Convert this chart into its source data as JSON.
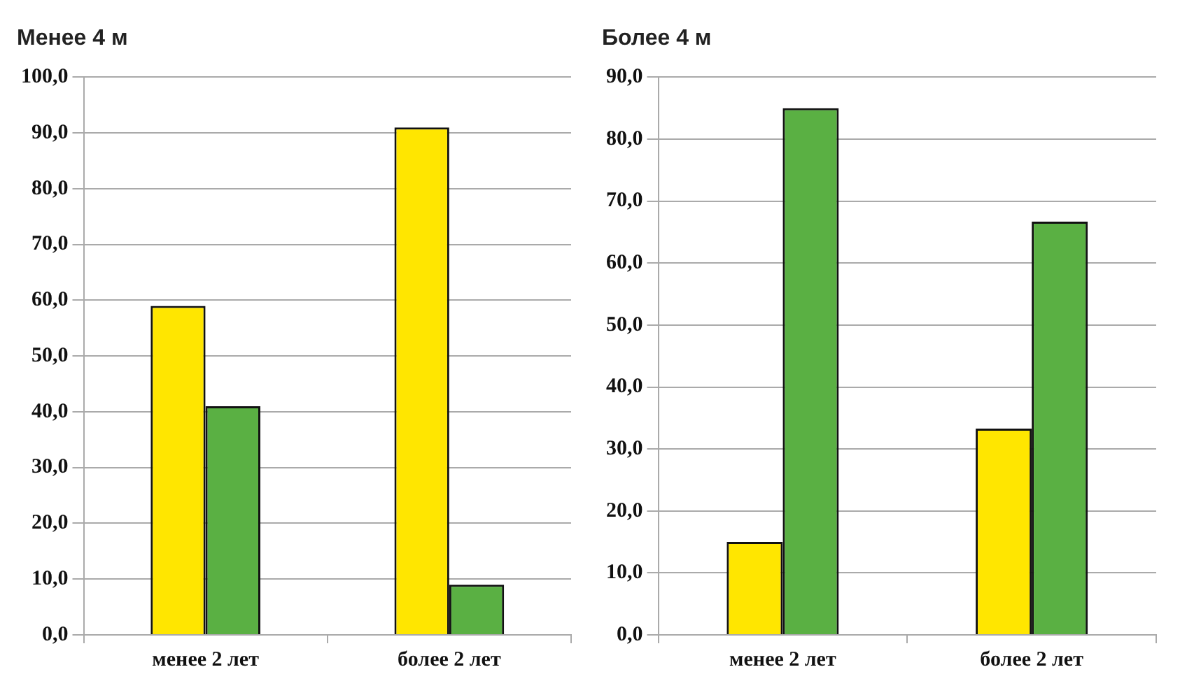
{
  "chart_data": [
    {
      "type": "bar",
      "title": "Менее 4 м",
      "categories": [
        "менее 2 лет",
        "более 2 лет"
      ],
      "series": [
        {
          "color": "#ffe600",
          "values": [
            59,
            91
          ]
        },
        {
          "color": "#5ab043",
          "values": [
            41,
            9
          ]
        }
      ],
      "ylim": [
        0,
        100
      ],
      "yticks": [
        {
          "value": 0,
          "label": "0,0"
        },
        {
          "value": 10,
          "label": "10,0"
        },
        {
          "value": 20,
          "label": "20,0"
        },
        {
          "value": 30,
          "label": "30,0"
        },
        {
          "value": 40,
          "label": "40,0"
        },
        {
          "value": 50,
          "label": "50,0"
        },
        {
          "value": 60,
          "label": "60,0"
        },
        {
          "value": 70,
          "label": "70,0"
        },
        {
          "value": 80,
          "label": "80,0"
        },
        {
          "value": 90,
          "label": "90,0"
        },
        {
          "value": 100,
          "label": "100,0"
        }
      ],
      "grid": "y",
      "legend": false
    },
    {
      "type": "bar",
      "title": "Более 4 м",
      "categories": [
        "менее 2 лет",
        "более 2 лет"
      ],
      "series": [
        {
          "color": "#ffe600",
          "values": [
            15,
            33.3
          ]
        },
        {
          "color": "#5ab043",
          "values": [
            85,
            66.7
          ]
        }
      ],
      "ylim": [
        0,
        90
      ],
      "yticks": [
        {
          "value": 0,
          "label": "0,0"
        },
        {
          "value": 10,
          "label": "10,0"
        },
        {
          "value": 20,
          "label": "20,0"
        },
        {
          "value": 30,
          "label": "30,0"
        },
        {
          "value": 40,
          "label": "40,0"
        },
        {
          "value": 50,
          "label": "50,0"
        },
        {
          "value": 60,
          "label": "60,0"
        },
        {
          "value": 70,
          "label": "70,0"
        },
        {
          "value": 80,
          "label": "80,0"
        },
        {
          "value": 90,
          "label": "90,0"
        }
      ],
      "grid": "y",
      "legend": false
    }
  ]
}
